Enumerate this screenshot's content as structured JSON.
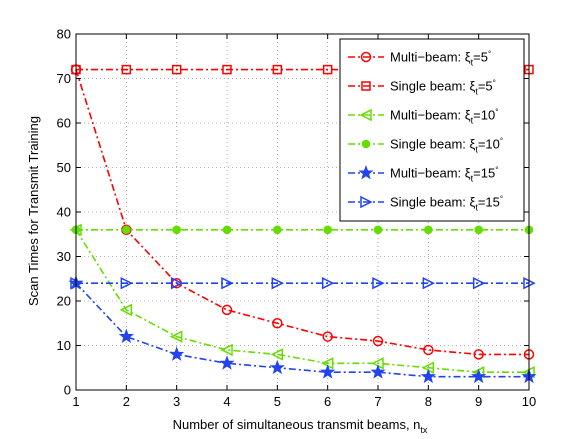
{
  "chart_data": {
    "type": "line",
    "xlabel": "Number of simultaneous transmit beams, n",
    "xlabel_sub": "tx",
    "ylabel": "Scan Times for Transmit Training",
    "xlim": [
      1,
      10
    ],
    "ylim": [
      0,
      80
    ],
    "xticks": [
      "1",
      "2",
      "3",
      "4",
      "5",
      "6",
      "7",
      "8",
      "9",
      "10"
    ],
    "yticks": [
      "0",
      "10",
      "20",
      "30",
      "40",
      "50",
      "60",
      "70",
      "80"
    ],
    "grid": true,
    "legend_position": "top-right",
    "x": [
      1,
      2,
      3,
      4,
      5,
      6,
      7,
      8,
      9,
      10
    ],
    "series": [
      {
        "name": "Multi−beam: ξ",
        "sub": "t",
        "eq": "=5",
        "sup": "°",
        "color": "#ff0000",
        "marker": "circle",
        "values": [
          72,
          36,
          24,
          18,
          15,
          12,
          11,
          9,
          8,
          8
        ]
      },
      {
        "name": "Single beam: ξ",
        "sub": "t",
        "eq": "=5",
        "sup": "°",
        "color": "#ff0000",
        "marker": "square",
        "values": [
          72,
          72,
          72,
          72,
          72,
          72,
          72,
          72,
          72,
          72
        ]
      },
      {
        "name": "Multi−beam: ξ",
        "sub": "t",
        "eq": "=10",
        "sup": "°",
        "color": "#66dd00",
        "marker": "triangle-left",
        "values": [
          36,
          18,
          12,
          9,
          8,
          6,
          6,
          5,
          4,
          4
        ]
      },
      {
        "name": "Single beam: ξ",
        "sub": "t",
        "eq": "=10",
        "sup": "°",
        "color": "#66dd00",
        "marker": "dot",
        "values": [
          36,
          36,
          36,
          36,
          36,
          36,
          36,
          36,
          36,
          36
        ]
      },
      {
        "name": "Multi−beam: ξ",
        "sub": "t",
        "eq": "=15",
        "sup": "°",
        "color": "#2244ee",
        "marker": "star",
        "values": [
          24,
          12,
          8,
          6,
          5,
          4,
          4,
          3,
          3,
          3
        ]
      },
      {
        "name": "Single beam: ξ",
        "sub": "t",
        "eq": "=15",
        "sup": "°",
        "color": "#2244ee",
        "marker": "triangle-right",
        "values": [
          24,
          24,
          24,
          24,
          24,
          24,
          24,
          24,
          24,
          24
        ]
      }
    ]
  }
}
